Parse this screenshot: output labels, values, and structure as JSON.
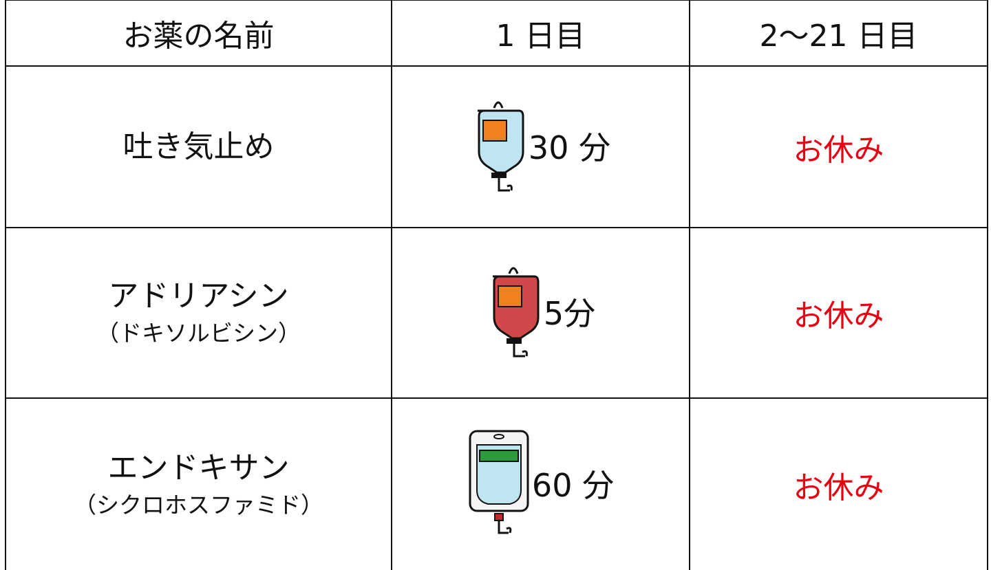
{
  "table": {
    "header": [
      "お薬の名前",
      "1 日目",
      "2〜21 日目"
    ],
    "rows": [
      {
        "name": "吐き気止め",
        "duration": "30 分",
        "rest": "お休み"
      },
      {
        "name": "アドリアシン",
        "note": "（ドキソルビシン）",
        "duration": "5分",
        "rest": "お休み"
      },
      {
        "name": "エンドキサン",
        "note": "（シクロホスファミド）",
        "duration": "60 分",
        "rest": "お休み"
      }
    ]
  }
}
